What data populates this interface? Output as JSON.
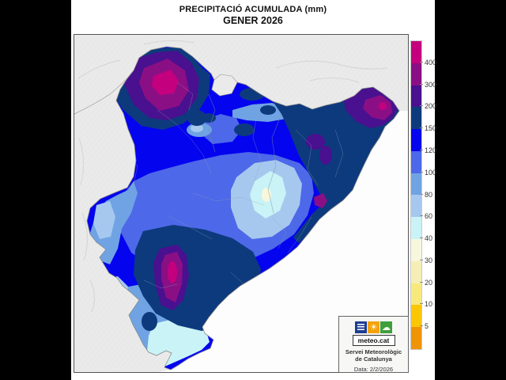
{
  "title": {
    "line1": "PRECIPITACIÓ ACUMULADA (mm)",
    "line2": "GENER 2026"
  },
  "legend": {
    "colors": [
      "#c4007e",
      "#8a0f85",
      "#49108f",
      "#0d3a7d",
      "#0404ee",
      "#4d68e8",
      "#6fa3e3",
      "#a6c8ef",
      "#c9f3f7",
      "#f7f7de",
      "#f5efb5",
      "#f8e97c",
      "#fbc603",
      "#ef9405"
    ],
    "labels": [
      "400",
      "300",
      "200",
      "150",
      "120",
      "100",
      "80",
      "60",
      "40",
      "30",
      "20",
      "10",
      "5"
    ]
  },
  "branding": {
    "logo_text": "meteo.cat",
    "org_line1": "Servei Meteorològic",
    "org_line2": "de Catalunya",
    "date_text": "Data: 2/2/2026",
    "logo_menu_color": "#1d3d91",
    "logo_sun_color": "#f3a20c",
    "logo_cloud_color": "#3f9f3b"
  },
  "map": {
    "land_color": "#eaeaea",
    "sea_color": "#fdfdfd",
    "border_color": "#8a8a8a"
  }
}
